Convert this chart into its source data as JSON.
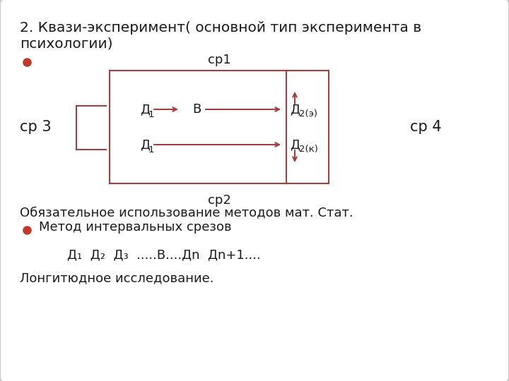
{
  "title_line1": "2. Квази-эксперимент( основной тип эксперимента в",
  "title_line2": "психологии)",
  "bg_color": "#ffffff",
  "border_color": "#c8c8c8",
  "box_color": "#a04040",
  "text_color": "#1a1a1a",
  "bullet_color": "#c0392b",
  "title_fontsize": 14.5,
  "font_size_main": 13,
  "font_size_sub": 9.5,
  "sr1_text": "ср1",
  "sr2_text": "ср2",
  "sr3_text": "ср 3",
  "sr4_text": "ср 4",
  "line1_text": "Обязательное использование методов мат. Стат.",
  "line2_text": "Метод интервальных срезов",
  "line3_text": "Д₁  Д₂  Д₃  .....В....Дn  Дn+1....",
  "line4_text": "Лонгитюдное исследование."
}
